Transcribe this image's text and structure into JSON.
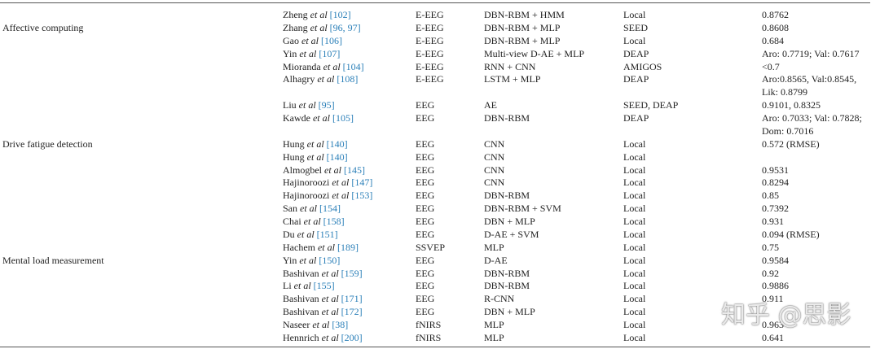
{
  "watermark": "知乎 @思影",
  "groups": [
    {
      "label": "Affective computing",
      "rows": [
        {
          "name": "Zheng",
          "etal": "et al",
          "ref": "[102]",
          "signal": "E-EEG",
          "model": "DBN-RBM + HMM",
          "dataset": "Local",
          "performance": [
            "0.8762"
          ]
        },
        {
          "name": "Zhang",
          "etal": "et al",
          "ref": "[96, 97]",
          "signal": "E-EEG",
          "model": "DBN-RBM + MLP",
          "dataset": "SEED",
          "performance": [
            "0.8608"
          ]
        },
        {
          "name": "Gao",
          "etal": "et al",
          "ref": "[106]",
          "signal": "E-EEG",
          "model": "DBN-RBM + MLP",
          "dataset": "Local",
          "performance": [
            "0.684"
          ]
        },
        {
          "name": "Yin",
          "etal": "et al",
          "ref": "[107]",
          "signal": "E-EEG",
          "model": "Multi-view D-AE + MLP",
          "dataset": "DEAP",
          "performance": [
            "Aro: 0.7719; Val: 0.7617"
          ]
        },
        {
          "name": "Mioranda",
          "etal": "et al",
          "ref": "[104]",
          "signal": "E-EEG",
          "model": "RNN + CNN",
          "dataset": "AMIGOS",
          "performance": [
            "<0.7"
          ]
        },
        {
          "name": "Alhagry",
          "etal": "et al",
          "ref": "[108]",
          "signal": "E-EEG",
          "model": "LSTM + MLP",
          "dataset": "DEAP",
          "performance": [
            "Aro:0.8565, Val:0.8545,",
            "Lik: 0.8799"
          ]
        },
        {
          "name": "Liu",
          "etal": "et al",
          "ref": "[95]",
          "signal": "EEG",
          "model": "AE",
          "dataset": "SEED, DEAP",
          "performance": [
            "0.9101, 0.8325"
          ]
        },
        {
          "name": "Kawde",
          "etal": "et al",
          "ref": "[105]",
          "signal": "EEG",
          "model": "DBN-RBM",
          "dataset": "DEAP",
          "performance": [
            "Aro: 0.7033; Val: 0.7828;",
            "Dom: 0.7016"
          ]
        }
      ]
    },
    {
      "label": "Drive fatigue detection",
      "rows": [
        {
          "name": "Hung",
          "etal": "et al",
          "ref": "[140]",
          "signal": "EEG",
          "model": "CNN",
          "dataset": "Local",
          "performance": [
            "0.572 (RMSE)"
          ]
        },
        {
          "name": "Hung",
          "etal": "et al",
          "ref": "[140]",
          "signal": "EEG",
          "model": "CNN",
          "dataset": "Local",
          "performance": null
        },
        {
          "name": "Almogbel",
          "etal": "et al",
          "ref": "[145]",
          "signal": "EEG",
          "model": "CNN",
          "dataset": "Local",
          "performance": [
            "0.9531"
          ]
        },
        {
          "name": "Hajinoroozi",
          "etal": "et al",
          "ref": "[147]",
          "signal": "EEG",
          "model": "CNN",
          "dataset": "Local",
          "performance": [
            "0.8294"
          ]
        },
        {
          "name": "Hajinoroozi",
          "etal": "et al",
          "ref": "[153]",
          "signal": "EEG",
          "model": "DBN-RBM",
          "dataset": "Local",
          "performance": [
            "0.85"
          ]
        },
        {
          "name": "San",
          "etal": "et al",
          "ref": "[154]",
          "signal": "EEG",
          "model": "DBN-RBM + SVM",
          "dataset": "Local",
          "performance": [
            "0.7392"
          ]
        },
        {
          "name": "Chai",
          "etal": "et al",
          "ref": "[158]",
          "signal": "EEG",
          "model": "DBN + MLP",
          "dataset": "Local",
          "performance": [
            "0.931"
          ]
        },
        {
          "name": "Du",
          "etal": "et al",
          "ref": "[151]",
          "signal": "EEG",
          "model": "D-AE + SVM",
          "dataset": "Local",
          "performance": [
            "0.094 (RMSE)"
          ]
        },
        {
          "name": "Hachem",
          "etal": "et al",
          "ref": "[189]",
          "signal": "SSVEP",
          "model": "MLP",
          "dataset": "Local",
          "performance": [
            "0.75"
          ]
        }
      ]
    },
    {
      "label": "Mental load measurement",
      "rows": [
        {
          "name": "Yin",
          "etal": "et al",
          "ref": "[150]",
          "signal": "EEG",
          "model": "D-AE",
          "dataset": "Local",
          "performance": [
            "0.9584"
          ]
        },
        {
          "name": "Bashivan",
          "etal": "et al",
          "ref": "[159]",
          "signal": "EEG",
          "model": "DBN-RBM",
          "dataset": "Local",
          "performance": [
            "0.92"
          ]
        },
        {
          "name": "Li",
          "etal": "et al",
          "ref": "[155]",
          "signal": "EEG",
          "model": "DBN-RBM",
          "dataset": "Local",
          "performance": [
            "0.9886"
          ]
        },
        {
          "name": "Bashivan",
          "etal": "et al",
          "ref": "[171]",
          "signal": "EEG",
          "model": "R-CNN",
          "dataset": "Local",
          "performance": [
            "0.911"
          ]
        },
        {
          "name": "Bashivan",
          "etal": "et al",
          "ref": "[172]",
          "signal": "EEG",
          "model": "DBN + MLP",
          "dataset": "Local",
          "performance": null
        },
        {
          "name": "Naseer",
          "etal": "et al",
          "ref": "[38]",
          "signal": "fNIRS",
          "model": "MLP",
          "dataset": "Local",
          "performance": [
            "0.963"
          ]
        },
        {
          "name": "Hennrich",
          "etal": "et al",
          "ref": "[200]",
          "signal": "fNIRS",
          "model": "MLP",
          "dataset": "Local",
          "performance": [
            "0.641"
          ]
        }
      ]
    }
  ]
}
